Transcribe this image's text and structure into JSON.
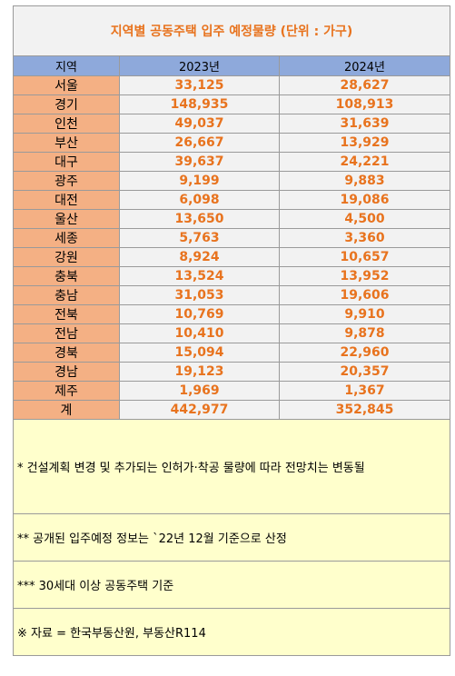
{
  "title": "지역별 공동주택 입주 예정물량 (단위 : 가구)",
  "header": {
    "region": "지역",
    "col1": "2023년",
    "col2": "2024년"
  },
  "rows": [
    {
      "region": "서울",
      "y2023": "33,125",
      "y2024": "28,627"
    },
    {
      "region": "경기",
      "y2023": "148,935",
      "y2024": "108,913"
    },
    {
      "region": "인천",
      "y2023": "49,037",
      "y2024": "31,639"
    },
    {
      "region": "부산",
      "y2023": "26,667",
      "y2024": "13,929"
    },
    {
      "region": "대구",
      "y2023": "39,637",
      "y2024": "24,221"
    },
    {
      "region": "광주",
      "y2023": "9,199",
      "y2024": "9,883"
    },
    {
      "region": "대전",
      "y2023": "6,098",
      "y2024": "19,086"
    },
    {
      "region": "울산",
      "y2023": "13,650",
      "y2024": "4,500"
    },
    {
      "region": "세종",
      "y2023": "5,763",
      "y2024": "3,360"
    },
    {
      "region": "강원",
      "y2023": "8,924",
      "y2024": "10,657"
    },
    {
      "region": "충북",
      "y2023": "13,524",
      "y2024": "13,952"
    },
    {
      "region": "충남",
      "y2023": "31,053",
      "y2024": "19,606"
    },
    {
      "region": "전북",
      "y2023": "10,769",
      "y2024": "9,910"
    },
    {
      "region": "전남",
      "y2023": "10,410",
      "y2024": "9,878"
    },
    {
      "region": "경북",
      "y2023": "15,094",
      "y2024": "22,960"
    },
    {
      "region": "경남",
      "y2023": "19,123",
      "y2024": "20,357"
    },
    {
      "region": "제주",
      "y2023": "1,969",
      "y2024": "1,367"
    },
    {
      "region": "계",
      "y2023": "442,977",
      "y2024": "352,845"
    }
  ],
  "notes": [
    "* 건설계획 변경 및 추가되는 인허가·착공 물량에 따라 전망치는 변동될",
    "** 공개된 입주예정 정보는 `22년 12월 기준으로 산정",
    "*** 30세대 이상 공동주택 기준",
    "※ 자료 = 한국부동산원, 부동산R114"
  ],
  "colors": {
    "title_bg": "#f2f2f2",
    "accent_text": "#e8731e",
    "header_bg": "#8ea9db",
    "region_bg": "#f4b084",
    "note_bg": "#ffffcc"
  }
}
